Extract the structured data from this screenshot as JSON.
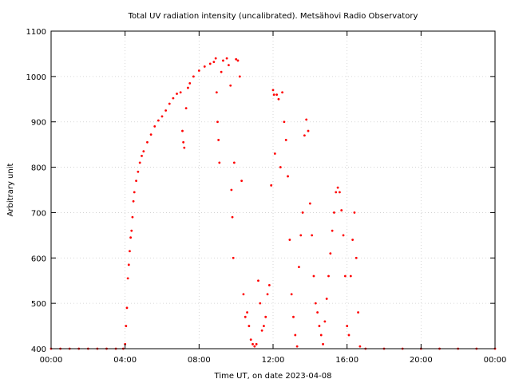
{
  "chart_data": {
    "type": "scatter",
    "title": "Total UV radiation intensity (uncalibrated). Metsähovi Radio Observatory",
    "xlabel": "Time UT, on date 2023-04-08",
    "ylabel": "Arbitrary unit",
    "xlim": [
      0,
      24
    ],
    "ylim": [
      400,
      1100
    ],
    "x_unit": "hours UT",
    "x_ticks": [
      {
        "value": 0,
        "label": "00:00"
      },
      {
        "value": 4,
        "label": "04:00"
      },
      {
        "value": 8,
        "label": "08:00"
      },
      {
        "value": 12,
        "label": "12:00"
      },
      {
        "value": 16,
        "label": "16:00"
      },
      {
        "value": 20,
        "label": "20:00"
      },
      {
        "value": 24,
        "label": "00:00"
      }
    ],
    "y_ticks": [
      400,
      500,
      600,
      700,
      800,
      900,
      1000,
      1100
    ],
    "grid": true,
    "legend": "none",
    "series_color": "#ff0000",
    "series": [
      {
        "points": [
          [
            0.0,
            400
          ],
          [
            0.5,
            400
          ],
          [
            1.0,
            400
          ],
          [
            1.5,
            400
          ],
          [
            2.0,
            400
          ],
          [
            2.5,
            400
          ],
          [
            3.0,
            400
          ],
          [
            3.5,
            400
          ],
          [
            3.9,
            400
          ],
          [
            4.0,
            410
          ],
          [
            4.05,
            450
          ],
          [
            4.1,
            490
          ],
          [
            4.15,
            555
          ],
          [
            4.2,
            585
          ],
          [
            4.25,
            615
          ],
          [
            4.3,
            645
          ],
          [
            4.35,
            660
          ],
          [
            4.4,
            690
          ],
          [
            4.45,
            725
          ],
          [
            4.5,
            745
          ],
          [
            4.6,
            770
          ],
          [
            4.7,
            790
          ],
          [
            4.8,
            810
          ],
          [
            4.9,
            825
          ],
          [
            5.0,
            835
          ],
          [
            5.2,
            855
          ],
          [
            5.4,
            872
          ],
          [
            5.6,
            890
          ],
          [
            5.8,
            903
          ],
          [
            6.0,
            912
          ],
          [
            6.2,
            925
          ],
          [
            6.4,
            940
          ],
          [
            6.6,
            952
          ],
          [
            6.8,
            962
          ],
          [
            7.0,
            965
          ],
          [
            7.1,
            880
          ],
          [
            7.15,
            855
          ],
          [
            7.2,
            843
          ],
          [
            7.3,
            930
          ],
          [
            7.4,
            975
          ],
          [
            7.5,
            985
          ],
          [
            7.7,
            1000
          ],
          [
            8.0,
            1013
          ],
          [
            8.3,
            1022
          ],
          [
            8.6,
            1028
          ],
          [
            8.8,
            1032
          ],
          [
            8.9,
            1040
          ],
          [
            8.95,
            965
          ],
          [
            9.0,
            900
          ],
          [
            9.05,
            860
          ],
          [
            9.1,
            810
          ],
          [
            9.2,
            1010
          ],
          [
            9.3,
            1035
          ],
          [
            9.5,
            1040
          ],
          [
            9.6,
            1025
          ],
          [
            9.7,
            980
          ],
          [
            9.75,
            750
          ],
          [
            9.8,
            690
          ],
          [
            9.85,
            600
          ],
          [
            9.9,
            810
          ],
          [
            10.0,
            1038
          ],
          [
            10.1,
            1035
          ],
          [
            10.2,
            1000
          ],
          [
            10.3,
            770
          ],
          [
            10.4,
            520
          ],
          [
            10.5,
            470
          ],
          [
            10.6,
            480
          ],
          [
            10.7,
            450
          ],
          [
            10.8,
            420
          ],
          [
            10.9,
            410
          ],
          [
            11.0,
            405
          ],
          [
            11.1,
            410
          ],
          [
            11.2,
            550
          ],
          [
            11.3,
            500
          ],
          [
            11.4,
            440
          ],
          [
            11.5,
            450
          ],
          [
            11.6,
            470
          ],
          [
            11.7,
            520
          ],
          [
            11.8,
            540
          ],
          [
            11.9,
            760
          ],
          [
            12.0,
            970
          ],
          [
            12.05,
            960
          ],
          [
            12.1,
            830
          ],
          [
            12.2,
            960
          ],
          [
            12.3,
            950
          ],
          [
            12.4,
            800
          ],
          [
            12.5,
            965
          ],
          [
            12.6,
            900
          ],
          [
            12.7,
            860
          ],
          [
            12.8,
            780
          ],
          [
            12.9,
            640
          ],
          [
            13.0,
            520
          ],
          [
            13.1,
            470
          ],
          [
            13.2,
            430
          ],
          [
            13.3,
            405
          ],
          [
            13.4,
            580
          ],
          [
            13.5,
            650
          ],
          [
            13.6,
            700
          ],
          [
            13.7,
            870
          ],
          [
            13.8,
            905
          ],
          [
            13.9,
            880
          ],
          [
            14.0,
            720
          ],
          [
            14.1,
            650
          ],
          [
            14.2,
            560
          ],
          [
            14.3,
            500
          ],
          [
            14.4,
            480
          ],
          [
            14.5,
            450
          ],
          [
            14.6,
            430
          ],
          [
            14.7,
            410
          ],
          [
            14.8,
            460
          ],
          [
            14.9,
            510
          ],
          [
            15.0,
            560
          ],
          [
            15.1,
            610
          ],
          [
            15.2,
            660
          ],
          [
            15.3,
            700
          ],
          [
            15.4,
            745
          ],
          [
            15.5,
            755
          ],
          [
            15.6,
            745
          ],
          [
            15.7,
            705
          ],
          [
            15.8,
            650
          ],
          [
            15.9,
            560
          ],
          [
            16.0,
            450
          ],
          [
            16.1,
            430
          ],
          [
            16.2,
            560
          ],
          [
            16.3,
            640
          ],
          [
            16.4,
            700
          ],
          [
            16.5,
            600
          ],
          [
            16.6,
            480
          ],
          [
            16.7,
            405
          ],
          [
            17.0,
            400
          ],
          [
            18.0,
            400
          ],
          [
            19.0,
            400
          ],
          [
            20.0,
            400
          ],
          [
            21.0,
            400
          ],
          [
            22.0,
            400
          ],
          [
            23.0,
            400
          ],
          [
            24.0,
            400
          ]
        ]
      }
    ]
  }
}
